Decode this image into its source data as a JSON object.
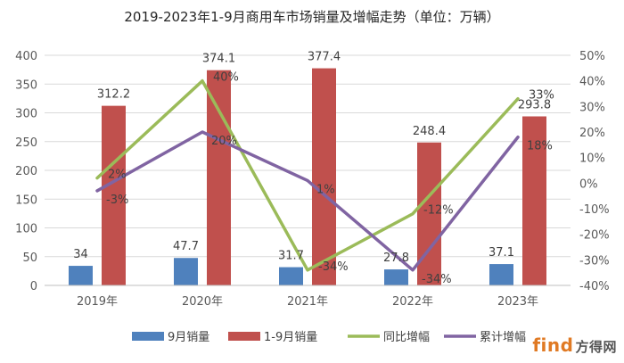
{
  "chart_data": {
    "type": "bar",
    "title": "2019-2023年1-9月商用车市场销量及增幅走势（单位：万辆）",
    "categories": [
      "2019年",
      "2020年",
      "2021年",
      "2022年",
      "2023年"
    ],
    "series": [
      {
        "name": "9月销量",
        "kind": "bar",
        "axis": "left",
        "color": "#4f81bd",
        "values": [
          34,
          47.7,
          31.7,
          27.8,
          37.1
        ],
        "labels": [
          "34",
          "47.7",
          "31.7",
          "27.8",
          "37.1"
        ]
      },
      {
        "name": "1-9月销量",
        "kind": "bar",
        "axis": "left",
        "color": "#c0504d",
        "values": [
          312.2,
          374.1,
          377.4,
          248.4,
          293.8
        ],
        "labels": [
          "312.2",
          "374.1",
          "377.4",
          "248.4",
          "293.8"
        ]
      },
      {
        "name": "同比增幅",
        "kind": "line",
        "axis": "right",
        "color": "#9bbb59",
        "values": [
          2,
          40,
          -34,
          -12,
          33
        ],
        "labels": [
          "2%",
          "40%",
          "-34%",
          "-12%",
          "33%"
        ]
      },
      {
        "name": "累计增幅",
        "kind": "line",
        "axis": "right",
        "color": "#8064a2",
        "values": [
          -3,
          20,
          1,
          -34,
          18
        ],
        "labels": [
          "-3%",
          "20%",
          "1%",
          "-34%",
          "18%"
        ]
      }
    ],
    "left_axis": {
      "min": 0,
      "max": 400,
      "step": 50,
      "ticks": [
        "0",
        "50",
        "100",
        "150",
        "200",
        "250",
        "300",
        "350",
        "400"
      ]
    },
    "right_axis": {
      "min": -40,
      "max": 50,
      "step": 10,
      "ticks": [
        "-40%",
        "-30%",
        "-20%",
        "-10%",
        "0%",
        "10%",
        "20%",
        "30%",
        "40%",
        "50%"
      ]
    },
    "grid": true,
    "legend_position": "bottom"
  },
  "watermark": {
    "main": "find",
    "sub": "方得网"
  }
}
